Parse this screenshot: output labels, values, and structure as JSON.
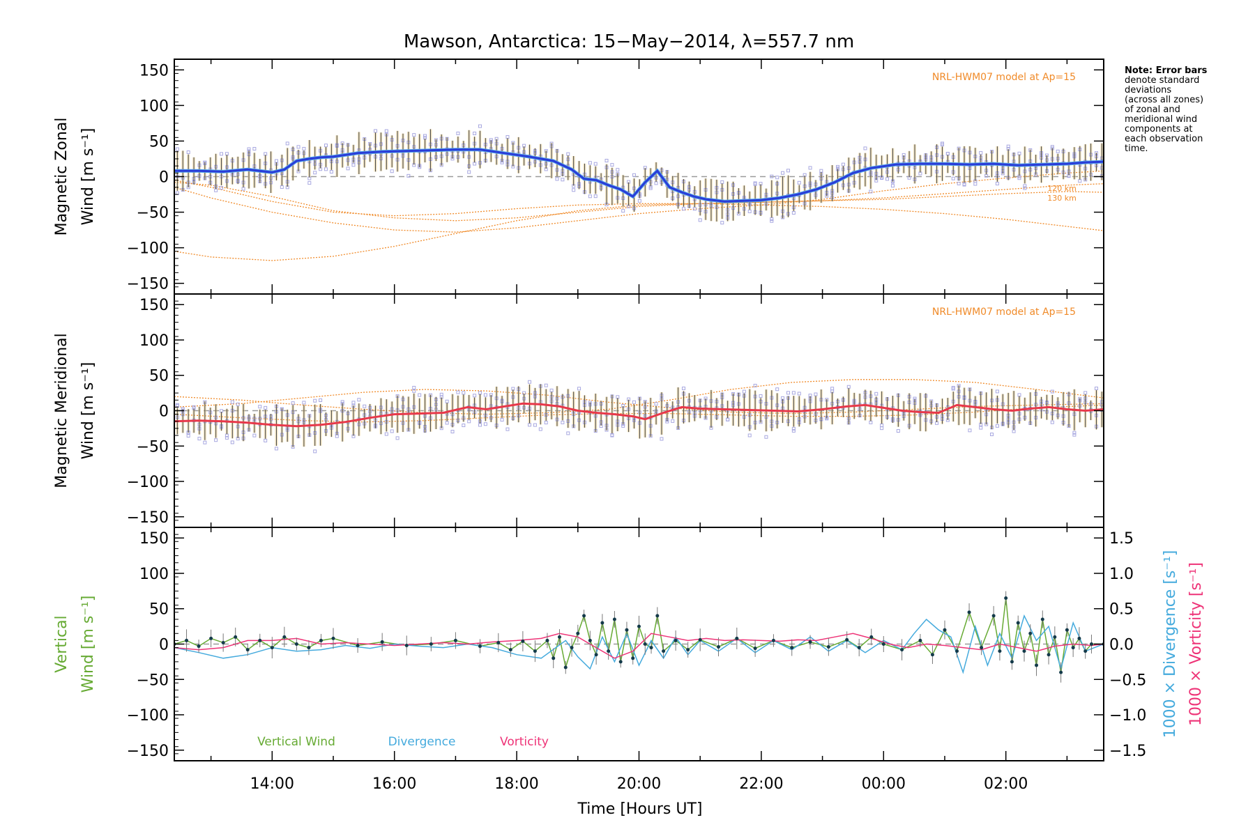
{
  "title": "Mawson, Antarctica: 15−May−2014, λ=557.7 nm",
  "note": [
    "Note: Error bars",
    "denote standard",
    "deviations",
    "(across all zones)",
    "of zonal and",
    "meridional wind",
    "components at",
    "each observation",
    "time."
  ],
  "colors": {
    "zonal": "#2a3cd8",
    "zonal_light": "#5aa8e8",
    "meridional": "#e8384a",
    "model": "#f08a28",
    "scatter": "#a8a8e0",
    "vertical": "#66aa33",
    "divergence": "#44aadd",
    "vorticity": "#ee3377",
    "errbar": "#444444"
  },
  "chart_data": [
    {
      "type": "line",
      "panel": "zonal",
      "ylabel": [
        "Magnetic Zonal",
        "Wind [m s⁻¹]"
      ],
      "ylim": [
        -165,
        165
      ],
      "yticks": [
        -150,
        -100,
        -50,
        0,
        50,
        100,
        150
      ],
      "ytick_labels": [
        "−150",
        "−100",
        "−50",
        "0",
        "50",
        "100",
        "150"
      ],
      "xlim": [
        12.4,
        27.6
      ],
      "model_label": "NRL-HWM07 model at Ap=15",
      "altitude_labels": [
        "120 km",
        "130 km"
      ],
      "series": [
        {
          "x": [
            12.4,
            12.8,
            13.2,
            13.6,
            14.0,
            14.2,
            14.4,
            14.6,
            14.8,
            15.0,
            15.4,
            15.8,
            16.2,
            16.6,
            17.0,
            17.4,
            17.8,
            18.2,
            18.6,
            18.9,
            19.1,
            19.3,
            19.5,
            19.7,
            19.9,
            20.1,
            20.3,
            20.5,
            20.7,
            20.9,
            21.1,
            21.4,
            21.7,
            22.0,
            22.3,
            22.6,
            22.9,
            23.2,
            23.5,
            23.8,
            24.2,
            24.6,
            25.0,
            25.4,
            25.8,
            26.2,
            26.6,
            27.0,
            27.3,
            27.6
          ],
          "y": [
            8,
            8,
            7,
            10,
            6,
            10,
            22,
            25,
            27,
            28,
            33,
            35,
            36,
            37,
            38,
            38,
            33,
            28,
            22,
            10,
            -3,
            -5,
            -12,
            -18,
            -28,
            -8,
            8,
            -15,
            -22,
            -28,
            -32,
            -35,
            -34,
            -33,
            -30,
            -25,
            -18,
            -8,
            5,
            12,
            17,
            18,
            18,
            17,
            18,
            16,
            17,
            18,
            20,
            21
          ]
        }
      ],
      "model_curves": [
        {
          "x": [
            12.4,
            13.0,
            14.0,
            15.0,
            16.0,
            17.0,
            18.0,
            19.0,
            20.0,
            21.0,
            22.0,
            23.0,
            24.0,
            25.0,
            26.0,
            27.0,
            27.6
          ],
          "y": [
            -105,
            -113,
            -118,
            -112,
            -98,
            -80,
            -62,
            -48,
            -40,
            -38,
            -36,
            -34,
            -32,
            -28,
            -24,
            -21,
            -22
          ]
        },
        {
          "x": [
            12.4,
            13.0,
            14.0,
            15.0,
            16.0,
            17.0,
            18.0,
            19.0,
            20.0,
            21.0,
            22.0,
            23.0,
            24.0,
            25.0,
            26.0,
            27.0,
            27.6
          ],
          "y": [
            -15,
            -30,
            -50,
            -65,
            -75,
            -78,
            -72,
            -62,
            -52,
            -45,
            -40,
            -32,
            -20,
            -10,
            -2,
            5,
            8
          ]
        },
        {
          "x": [
            12.4,
            13.0,
            14.0,
            15.0,
            16.0,
            17.0,
            18.0,
            19.0,
            20.0,
            21.0,
            22.0,
            23.0,
            24.0,
            25.0,
            26.0,
            27.0,
            27.6
          ],
          "y": [
            -5,
            -15,
            -35,
            -50,
            -55,
            -52,
            -45,
            -40,
            -38,
            -38,
            -40,
            -42,
            -46,
            -52,
            -60,
            -70,
            -76
          ]
        },
        {
          "x": [
            12.4,
            13.0,
            14.0,
            15.0,
            16.0,
            17.0,
            18.0,
            19.0,
            20.0,
            21.0,
            22.0,
            23.0,
            24.0,
            25.0,
            26.0,
            27.0,
            27.6
          ],
          "y": [
            -8,
            -12,
            -28,
            -48,
            -58,
            -62,
            -58,
            -50,
            -42,
            -38,
            -36,
            -34,
            -30,
            -24,
            -18,
            -12,
            -10
          ]
        }
      ]
    },
    {
      "type": "line",
      "panel": "meridional",
      "ylabel": [
        "Magnetic Meridional",
        "Wind [m s⁻¹]"
      ],
      "ylim": [
        -165,
        165
      ],
      "yticks": [
        -150,
        -100,
        -50,
        0,
        50,
        100,
        150
      ],
      "ytick_labels": [
        "−150",
        "−100",
        "−50",
        "0",
        "50",
        "100",
        "150"
      ],
      "xlim": [
        12.4,
        27.6
      ],
      "model_label": "NRL-HWM07 model at Ap=15",
      "series": [
        {
          "x": [
            12.4,
            12.8,
            13.2,
            13.6,
            14.0,
            14.4,
            14.8,
            15.2,
            15.6,
            16.0,
            16.4,
            16.8,
            17.2,
            17.5,
            17.8,
            18.1,
            18.4,
            18.7,
            19.0,
            19.3,
            19.6,
            19.9,
            20.1,
            20.4,
            20.7,
            21.0,
            21.4,
            21.8,
            22.2,
            22.6,
            23.0,
            23.4,
            23.7,
            24.0,
            24.3,
            24.6,
            24.9,
            25.2,
            25.5,
            25.8,
            26.1,
            26.4,
            26.7,
            27.0,
            27.3,
            27.6
          ],
          "y": [
            -15,
            -14,
            -15,
            -17,
            -20,
            -22,
            -20,
            -16,
            -10,
            -5,
            -4,
            -3,
            5,
            2,
            6,
            10,
            9,
            6,
            0,
            -3,
            -5,
            -8,
            -12,
            -3,
            5,
            3,
            2,
            1,
            0,
            -1,
            2,
            6,
            8,
            4,
            0,
            -2,
            -3,
            8,
            5,
            2,
            0,
            3,
            5,
            2,
            0,
            2
          ]
        }
      ],
      "model_curves": [
        {
          "x": [
            12.4,
            13.5,
            14.5,
            15.5,
            16.5,
            17.5,
            18.5,
            19.5,
            20.5,
            21.5,
            22.5,
            23.5,
            24.5,
            25.5,
            26.5,
            27.6
          ],
          "y": [
            20,
            15,
            8,
            2,
            -3,
            -5,
            -3,
            2,
            15,
            30,
            40,
            44,
            44,
            40,
            30,
            18
          ]
        },
        {
          "x": [
            12.4,
            13.5,
            14.5,
            15.5,
            16.5,
            17.5,
            18.5,
            19.5,
            20.5,
            21.5,
            22.5,
            23.5,
            24.5,
            25.5,
            26.5,
            27.6
          ],
          "y": [
            5,
            10,
            18,
            26,
            30,
            28,
            22,
            12,
            4,
            -2,
            -4,
            -2,
            2,
            6,
            8,
            10
          ]
        },
        {
          "x": [
            12.4,
            13.5,
            14.5,
            15.5,
            16.5,
            17.5,
            18.5,
            19.5,
            20.5,
            21.5,
            22.5,
            23.5,
            24.5,
            25.5,
            26.5,
            27.6
          ],
          "y": [
            -5,
            -10,
            -14,
            -16,
            -14,
            -10,
            -6,
            -4,
            -4,
            -6,
            -8,
            -8,
            -6,
            -2,
            4,
            8
          ]
        }
      ]
    },
    {
      "type": "line",
      "panel": "vertical",
      "ylabel": [
        "Vertical",
        "Wind [m s⁻¹]"
      ],
      "ylabel_right": [
        "1000 × Divergence [s⁻¹]",
        "1000 × Vorticity [s⁻¹]"
      ],
      "ylim": [
        -165,
        165
      ],
      "yticks": [
        -150,
        -100,
        -50,
        0,
        50,
        100,
        150
      ],
      "ytick_labels": [
        "−150",
        "−100",
        "−50",
        "0",
        "50",
        "100",
        "150"
      ],
      "ylim_right": [
        -1.65,
        1.65
      ],
      "yticks_right": [
        -1.5,
        -1.0,
        -0.5,
        0.0,
        0.5,
        1.0,
        1.5
      ],
      "ytick_labels_right": [
        "−1.5",
        "−1.0",
        "−0.5",
        "0.0",
        "0.5",
        "1.0",
        "1.5"
      ],
      "xlim": [
        12.4,
        27.6
      ],
      "xticks": [
        14,
        16,
        18,
        20,
        22,
        24,
        26
      ],
      "xtick_labels": [
        "14:00",
        "16:00",
        "18:00",
        "20:00",
        "22:00",
        "00:00",
        "02:00"
      ],
      "xlabel": "Time [Hours UT]",
      "legend": [
        "Vertical Wind",
        "Divergence",
        "Vorticity"
      ],
      "series": [
        {
          "name": "Vertical Wind",
          "axis": "left",
          "x": [
            12.4,
            12.6,
            12.8,
            13.0,
            13.2,
            13.4,
            13.6,
            13.8,
            14.0,
            14.2,
            14.4,
            14.6,
            14.8,
            15.0,
            15.4,
            15.8,
            16.2,
            16.6,
            17.0,
            17.4,
            17.7,
            17.9,
            18.1,
            18.3,
            18.5,
            18.6,
            18.7,
            18.8,
            18.9,
            19.0,
            19.1,
            19.2,
            19.3,
            19.4,
            19.5,
            19.6,
            19.7,
            19.8,
            19.9,
            20.0,
            20.1,
            20.2,
            20.3,
            20.4,
            20.6,
            20.8,
            21.0,
            21.3,
            21.6,
            21.9,
            22.2,
            22.5,
            22.8,
            23.1,
            23.4,
            23.6,
            23.8,
            24.0,
            24.3,
            24.6,
            24.8,
            25.0,
            25.2,
            25.4,
            25.6,
            25.8,
            25.9,
            26.0,
            26.1,
            26.2,
            26.3,
            26.4,
            26.5,
            26.6,
            26.7,
            26.8,
            26.9,
            27.0,
            27.1,
            27.2,
            27.3,
            27.4,
            27.6
          ],
          "y": [
            0,
            5,
            -3,
            8,
            2,
            10,
            -8,
            5,
            -5,
            10,
            0,
            -5,
            5,
            8,
            -2,
            3,
            -2,
            0,
            5,
            -3,
            2,
            -8,
            4,
            -10,
            5,
            -20,
            10,
            -33,
            -5,
            15,
            40,
            5,
            -15,
            30,
            -10,
            35,
            -25,
            20,
            -20,
            25,
            0,
            -5,
            40,
            -10,
            5,
            -8,
            6,
            -4,
            8,
            -6,
            5,
            -5,
            3,
            -4,
            6,
            -5,
            10,
            0,
            -8,
            5,
            -15,
            20,
            -10,
            45,
            -5,
            40,
            -10,
            65,
            -25,
            30,
            -10,
            15,
            -30,
            35,
            -15,
            10,
            -40,
            20,
            -5,
            8,
            -10,
            0,
            0
          ]
        },
        {
          "name": "Divergence",
          "axis": "right",
          "x": [
            12.4,
            12.8,
            13.2,
            13.6,
            14.0,
            14.4,
            14.8,
            15.2,
            15.6,
            16.0,
            16.4,
            16.8,
            17.2,
            17.6,
            18.0,
            18.4,
            18.8,
            19.0,
            19.2,
            19.4,
            19.6,
            19.8,
            20.0,
            20.2,
            20.4,
            20.6,
            20.8,
            21.0,
            21.3,
            21.6,
            21.9,
            22.2,
            22.5,
            22.8,
            23.1,
            23.4,
            23.7,
            24.0,
            24.3,
            24.5,
            24.7,
            24.9,
            25.1,
            25.3,
            25.5,
            25.7,
            25.9,
            26.1,
            26.3,
            26.5,
            26.7,
            26.9,
            27.1,
            27.3,
            27.6
          ],
          "y": [
            -0.05,
            -0.12,
            -0.2,
            -0.15,
            -0.05,
            -0.1,
            -0.08,
            -0.02,
            -0.06,
            0.0,
            -0.03,
            -0.05,
            0.0,
            -0.05,
            -0.15,
            -0.2,
            0.05,
            -0.18,
            -0.35,
            0.1,
            -0.25,
            0.15,
            -0.3,
            0.05,
            -0.2,
            0.1,
            -0.15,
            0.05,
            -0.1,
            0.08,
            -0.12,
            0.05,
            -0.08,
            0.1,
            -0.1,
            0.05,
            -0.12,
            0.05,
            -0.08,
            0.15,
            0.35,
            0.2,
            0.1,
            -0.4,
            0.25,
            -0.3,
            0.15,
            -0.2,
            0.4,
            0.05,
            0.25,
            -0.35,
            0.3,
            -0.1,
            0.0
          ]
        },
        {
          "name": "Vorticity",
          "axis": "right",
          "x": [
            12.4,
            12.8,
            13.2,
            13.6,
            14.0,
            14.4,
            14.8,
            15.2,
            15.6,
            16.0,
            16.4,
            16.8,
            17.2,
            17.6,
            18.0,
            18.4,
            18.7,
            19.0,
            19.3,
            19.6,
            19.9,
            20.2,
            20.5,
            20.8,
            21.1,
            21.4,
            21.7,
            22.0,
            22.3,
            22.6,
            22.9,
            23.2,
            23.5,
            23.8,
            24.1,
            24.4,
            24.7,
            25.0,
            25.3,
            25.6,
            25.9,
            26.2,
            26.5,
            26.8,
            27.1,
            27.4,
            27.6
          ],
          "y": [
            -0.05,
            -0.08,
            -0.05,
            0.05,
            0.05,
            0.08,
            0.0,
            0.02,
            0.0,
            -0.02,
            0.0,
            0.02,
            0.0,
            0.03,
            0.05,
            0.08,
            0.15,
            0.1,
            -0.05,
            -0.2,
            -0.1,
            0.15,
            0.1,
            0.05,
            0.08,
            0.05,
            0.06,
            0.05,
            0.04,
            0.06,
            0.05,
            0.1,
            0.15,
            0.08,
            0.0,
            -0.05,
            0.0,
            -0.02,
            -0.05,
            -0.08,
            0.0,
            -0.05,
            -0.1,
            -0.03,
            0.0,
            -0.02,
            0.0
          ]
        }
      ]
    }
  ]
}
